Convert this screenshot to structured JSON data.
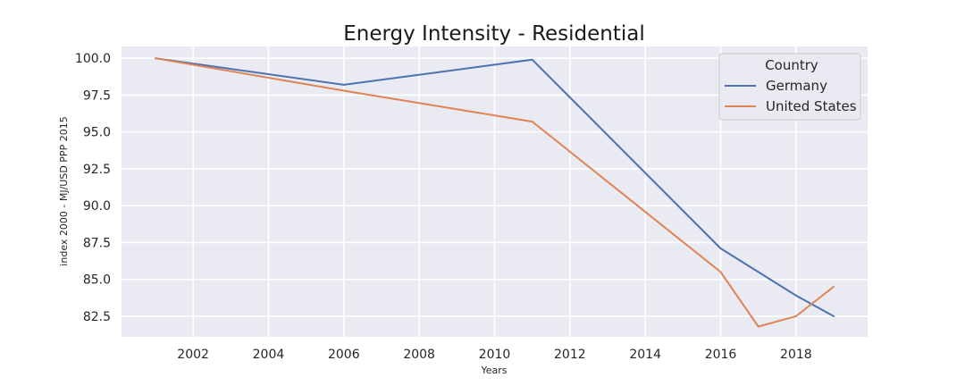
{
  "chart_data": {
    "type": "line",
    "title": "Energy Intensity - Residential",
    "xlabel": "Years",
    "ylabel": "index 2000 - MJ/USD PPP 2015",
    "xlim": [
      2000.1,
      2019.9
    ],
    "ylim": [
      81.1,
      100.8
    ],
    "xticks": [
      2002,
      2004,
      2006,
      2008,
      2010,
      2012,
      2014,
      2016,
      2018
    ],
    "yticks": [
      82.5,
      85.0,
      87.5,
      90.0,
      92.5,
      95.0,
      97.5,
      100.0
    ],
    "ytick_labels": [
      "82.5",
      "85.0",
      "87.5",
      "90.0",
      "92.5",
      "95.0",
      "97.5",
      "100.0"
    ],
    "grid": true,
    "legend": {
      "title": "Country",
      "placement": "upper-right"
    },
    "series": [
      {
        "name": "Germany",
        "color": "#4c72b0",
        "x": [
          2001,
          2006,
          2011,
          2016,
          2018,
          2019
        ],
        "y": [
          100.0,
          98.2,
          99.9,
          87.1,
          83.9,
          82.5
        ]
      },
      {
        "name": "United States",
        "color": "#dd8452",
        "x": [
          2001,
          2006,
          2011,
          2016,
          2017,
          2018,
          2019
        ],
        "y": [
          100.0,
          97.8,
          95.7,
          85.5,
          81.8,
          82.5,
          84.5
        ]
      }
    ]
  }
}
